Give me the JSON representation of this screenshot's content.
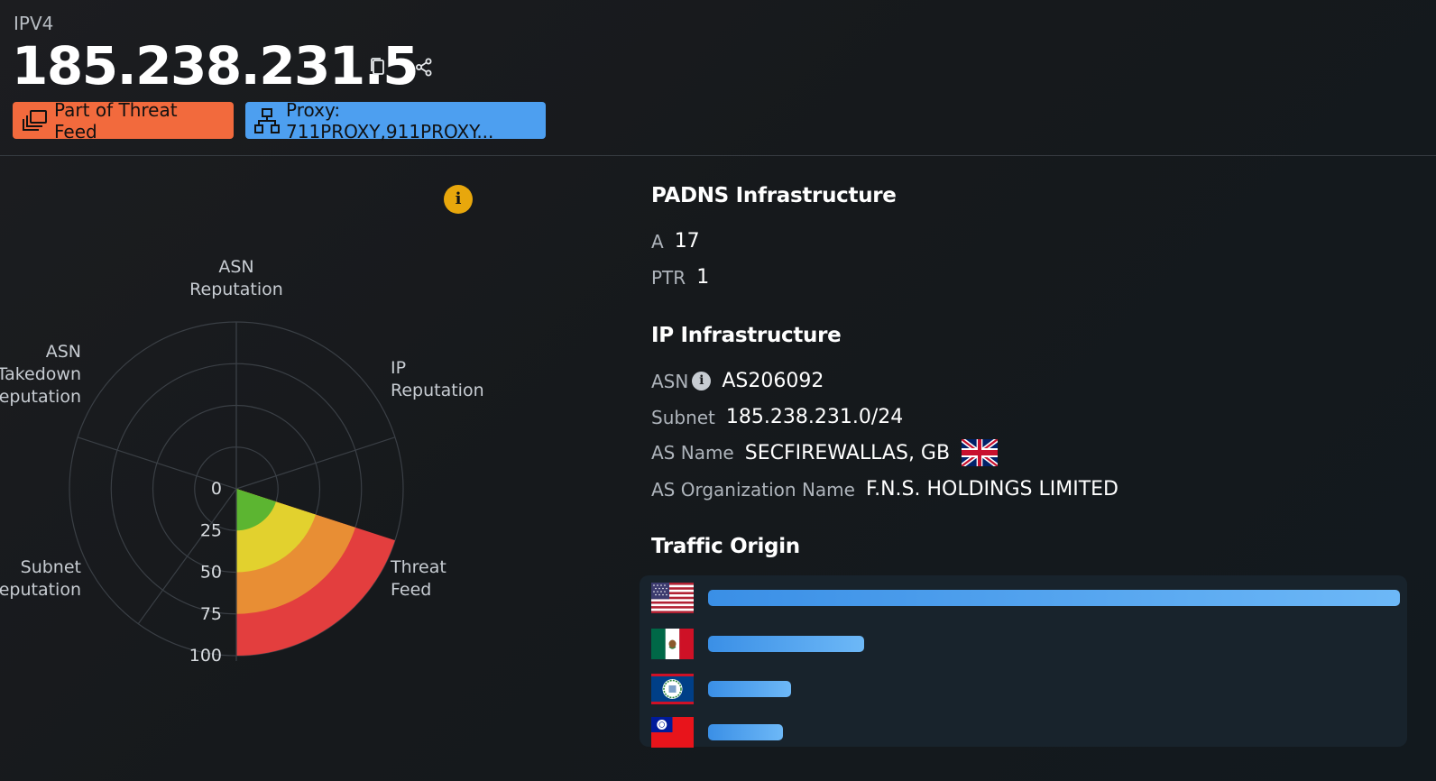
{
  "header": {
    "ip_type": "IPV4",
    "ip_address": "185.238.231.5",
    "copy_icon": "copy-icon",
    "share_icon": "share-icon"
  },
  "tags": {
    "threat_feed": {
      "label": "Part of Threat Feed",
      "color": "#f26a3d",
      "icon": "layers-icon"
    },
    "proxy": {
      "label": "Proxy: 711PROXY,911PROXY...",
      "color": "#4d9ff0",
      "icon": "network-icon"
    }
  },
  "risk_chart": {
    "info_icon": "info-icon",
    "info_glyph": "i",
    "chart_data": {
      "type": "polar-area",
      "axes": [
        "ASN Reputation",
        "IP Reputation",
        "Threat Feed",
        "Subnet Reputation",
        "ASN Takedown Reputation"
      ],
      "axis_labels": [
        [
          "ASN",
          "Reputation"
        ],
        [
          "IP",
          "Reputation"
        ],
        [
          "Threat",
          "Feed"
        ],
        [
          "Subnet",
          "Reputation"
        ],
        [
          "ASN",
          "Takedown",
          "Reputation"
        ]
      ],
      "radial_ticks": [
        "0",
        "25",
        "50",
        "75",
        "100"
      ],
      "radial_range": [
        0,
        100
      ],
      "values": {
        "ASN Reputation": 0,
        "IP Reputation": 0,
        "Threat Feed": 100,
        "Subnet Reputation": 0,
        "ASN Takedown Reputation": 0
      },
      "bands": [
        {
          "from": 0,
          "to": 25,
          "color": "#5cb531"
        },
        {
          "from": 25,
          "to": 50,
          "color": "#e2d12e"
        },
        {
          "from": 50,
          "to": 75,
          "color": "#e88e34"
        },
        {
          "from": 75,
          "to": 100,
          "color": "#e33e3e"
        }
      ],
      "grid": true
    }
  },
  "padns": {
    "title": "PADNS Infrastructure",
    "rows": [
      {
        "key": "A",
        "value": "17"
      },
      {
        "key": "PTR",
        "value": "1"
      }
    ]
  },
  "ip_infra": {
    "title": "IP Infrastructure",
    "asn": {
      "key": "ASN",
      "value": "AS206092",
      "info_glyph": "i"
    },
    "subnet": {
      "key": "Subnet",
      "value": "185.238.231.0/24"
    },
    "as_name": {
      "key": "AS Name",
      "value": "SECFIREWALLAS, GB",
      "flag_icon": "uk-flag-icon"
    },
    "as_org": {
      "key": "AS Organization Name",
      "value": "F.N.S. HOLDINGS LIMITED"
    }
  },
  "traffic": {
    "title": "Traffic Origin",
    "rows": [
      {
        "flag_icon": "us-flag-icon",
        "share": 1.0
      },
      {
        "flag_icon": "mexico-flag-icon",
        "share": 0.226
      },
      {
        "flag_icon": "belize-flag-icon",
        "share": 0.12
      },
      {
        "flag_icon": "taiwan-flag-icon",
        "share": 0.108
      }
    ]
  }
}
